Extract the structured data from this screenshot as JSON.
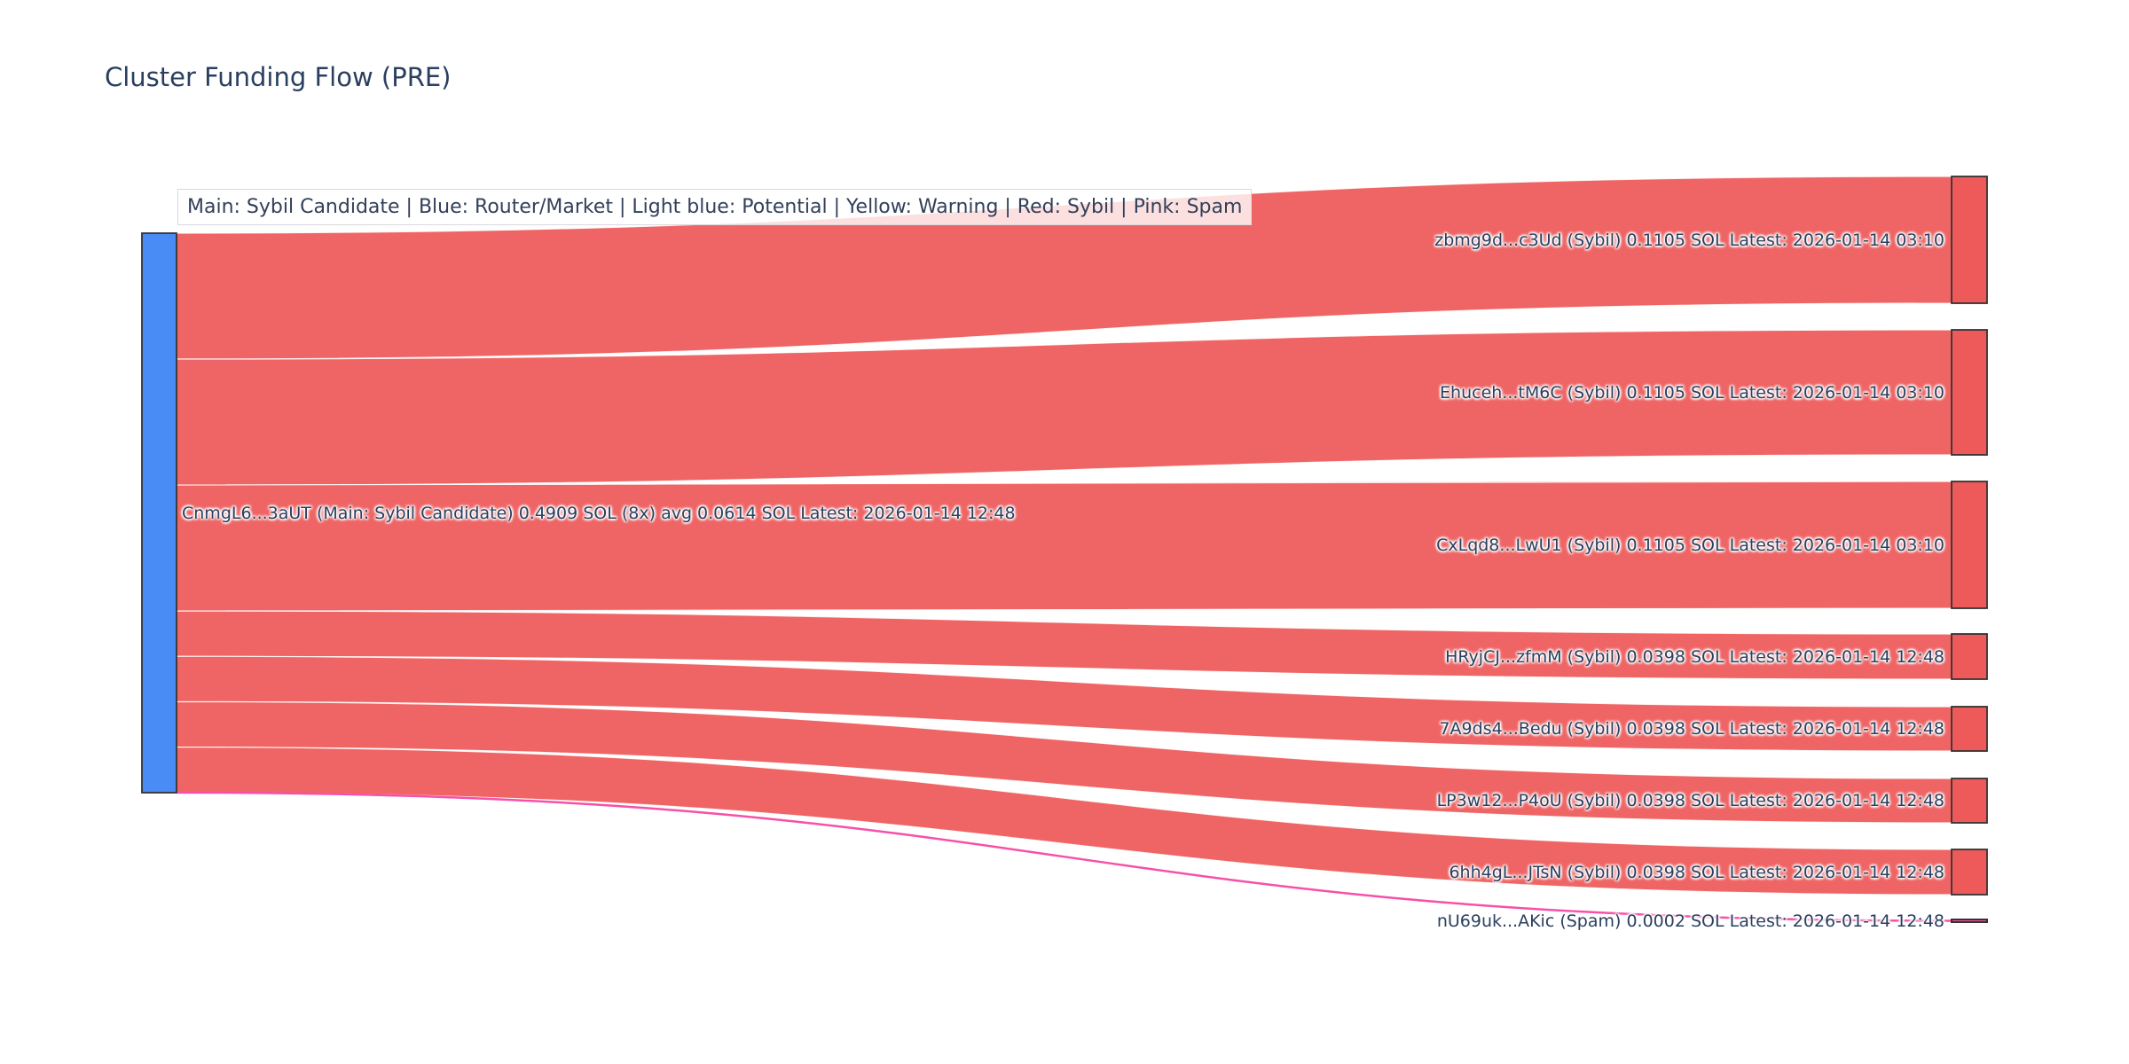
{
  "title": "Cluster Funding Flow (PRE)",
  "legend": {
    "text": "Main: Sybil Candidate  |  Blue: Router/Market | Light blue: Potential | Yellow: Warning | Red: Sybil | Pink: Spam"
  },
  "colors": {
    "background": "#ffffff",
    "title_text": "#2a3f5f",
    "label_text": "#2a3f5f",
    "legend_text": "#32405a",
    "legend_background": "rgba(255,255,255,0.8)",
    "legend_border": "#d9d9df",
    "main_node_blue": "#4a8cf5",
    "sybil_red": "#ee5a5a",
    "spam_pink": "#f750a8",
    "node_border": "#333333"
  },
  "chart_data": {
    "type": "sankey",
    "title": "Cluster Funding Flow (PRE)",
    "unit": "SOL",
    "orientation": "horizontal",
    "legend_position": "top-left inside plot area",
    "nodes": [
      {
        "id": 0,
        "side": "source",
        "label": "CnmgL6...3aUT (Main: Sybil Candidate) 0.4909 SOL (8x) avg 0.0614 SOL Latest: 2026-01-14 12:48",
        "address": "CnmgL6...3aUT",
        "role": "Main: Sybil Candidate",
        "total_sol": 0.4909,
        "outgoing_count": 8,
        "avg_sol": 0.0614,
        "latest": "2026-01-14 12:48",
        "color": "#4a8cf5"
      },
      {
        "id": 1,
        "side": "target",
        "label": "zbmg9d...c3Ud (Sybil) 0.1105 SOL Latest: 2026-01-14 03:10",
        "address": "zbmg9d...c3Ud",
        "role": "Sybil",
        "sol": 0.1105,
        "latest": "2026-01-14 03:10",
        "color": "#ee5a5a"
      },
      {
        "id": 2,
        "side": "target",
        "label": "Ehuceh...tM6C (Sybil) 0.1105 SOL Latest: 2026-01-14 03:10",
        "address": "Ehuceh...tM6C",
        "role": "Sybil",
        "sol": 0.1105,
        "latest": "2026-01-14 03:10",
        "color": "#ee5a5a"
      },
      {
        "id": 3,
        "side": "target",
        "label": "CxLqd8...LwU1 (Sybil) 0.1105 SOL Latest: 2026-01-14 03:10",
        "address": "CxLqd8...LwU1",
        "role": "Sybil",
        "sol": 0.1105,
        "latest": "2026-01-14 03:10",
        "color": "#ee5a5a"
      },
      {
        "id": 4,
        "side": "target",
        "label": "HRyjCJ...zfmM (Sybil) 0.0398 SOL Latest: 2026-01-14 12:48",
        "address": "HRyjCJ...zfmM",
        "role": "Sybil",
        "sol": 0.0398,
        "latest": "2026-01-14 12:48",
        "color": "#ee5a5a"
      },
      {
        "id": 5,
        "side": "target",
        "label": "7A9ds4...Bedu (Sybil) 0.0398 SOL Latest: 2026-01-14 12:48",
        "address": "7A9ds4...Bedu",
        "role": "Sybil",
        "sol": 0.0398,
        "latest": "2026-01-14 12:48",
        "color": "#ee5a5a"
      },
      {
        "id": 6,
        "side": "target",
        "label": "LP3w12...P4oU (Sybil) 0.0398 SOL Latest: 2026-01-14 12:48",
        "address": "LP3w12...P4oU",
        "role": "Sybil",
        "sol": 0.0398,
        "latest": "2026-01-14 12:48",
        "color": "#ee5a5a"
      },
      {
        "id": 7,
        "side": "target",
        "label": "6hh4gL...JTsN (Sybil) 0.0398 SOL Latest: 2026-01-14 12:48",
        "address": "6hh4gL...JTsN",
        "role": "Sybil",
        "sol": 0.0398,
        "latest": "2026-01-14 12:48",
        "color": "#ee5a5a"
      },
      {
        "id": 8,
        "side": "target",
        "label": "nU69uk...AKic (Spam) 0.0002 SOL Latest: 2026-01-14 12:48",
        "address": "nU69uk...AKic",
        "role": "Spam",
        "sol": 0.0002,
        "latest": "2026-01-14 12:48",
        "color": "#f750a8"
      }
    ],
    "links": [
      {
        "source": 0,
        "target": 1,
        "value": 0.1105,
        "color": "#ee5a5a"
      },
      {
        "source": 0,
        "target": 2,
        "value": 0.1105,
        "color": "#ee5a5a"
      },
      {
        "source": 0,
        "target": 3,
        "value": 0.1105,
        "color": "#ee5a5a"
      },
      {
        "source": 0,
        "target": 4,
        "value": 0.0398,
        "color": "#ee5a5a"
      },
      {
        "source": 0,
        "target": 5,
        "value": 0.0398,
        "color": "#ee5a5a"
      },
      {
        "source": 0,
        "target": 6,
        "value": 0.0398,
        "color": "#ee5a5a"
      },
      {
        "source": 0,
        "target": 7,
        "value": 0.0398,
        "color": "#ee5a5a"
      },
      {
        "source": 0,
        "target": 8,
        "value": 0.0002,
        "color": "#f750a8"
      }
    ]
  }
}
